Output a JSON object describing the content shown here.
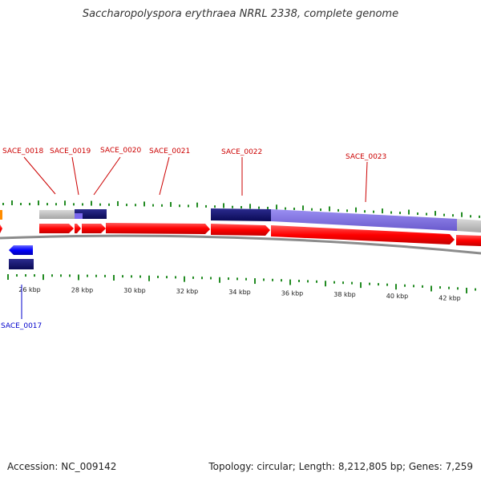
{
  "title": "Saccharopolyspora erythraea NRRL 2338, complete genome",
  "footer": {
    "accession": "Accession: NC_009142",
    "summary": "Topology: circular; Length: 8,212,805 bp; Genes: 7,259"
  },
  "colors": {
    "forward_gene": "#ff0000",
    "reverse_gene": "#0000ff",
    "forward_label": "#cc0000",
    "reverse_label": "#0000cc",
    "gc_tick": "#228b22",
    "backbone": "#8c8c8c",
    "feature_grey": "#b3b3b3",
    "feature_navy": "#191970",
    "feature_slate": "#7b68ee",
    "feature_orange": "#ff8c00"
  },
  "scale_labels": [
    "26 kbp",
    "28 kbp",
    "30 kbp",
    "32 kbp",
    "34 kbp",
    "36 kbp",
    "38 kbp",
    "40 kbp",
    "42 kbp"
  ],
  "forward_genes": [
    {
      "id": "SACE_0018"
    },
    {
      "id": "SACE_0019"
    },
    {
      "id": "SACE_0020"
    },
    {
      "id": "SACE_0021"
    },
    {
      "id": "SACE_0022"
    },
    {
      "id": "SACE_0023"
    }
  ],
  "reverse_genes": [
    {
      "id": "SACE_0017"
    }
  ]
}
